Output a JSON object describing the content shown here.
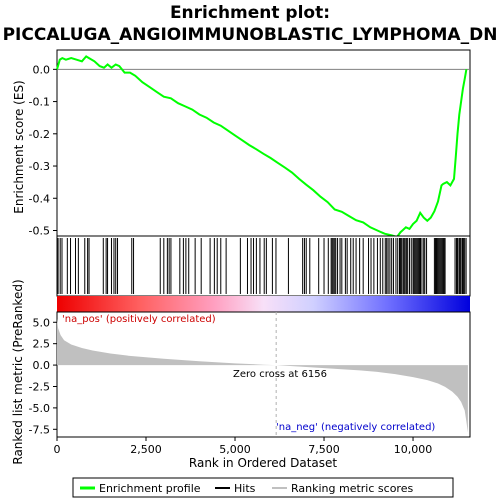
{
  "chart_data": {
    "type": "line",
    "title_line1": "Enrichment plot:",
    "title_line2": "PICCALUGA_ANGIOIMMUNOBLASTIC_LYMPHOMA_DN",
    "es_ylabel": "Enrichment score (ES)",
    "rank_ylabel_line1": "Ranked list metric (PreRanked)",
    "xlabel": "Rank in Ordered Dataset",
    "es_yticks": [
      0.0,
      -0.1,
      -0.2,
      -0.3,
      -0.4,
      -0.5
    ],
    "es_ytick_labels": [
      "0.0",
      "-0.1",
      "-0.2",
      "-0.3",
      "-0.4",
      "-0.5"
    ],
    "es_ylim": [
      -0.545,
      0.06
    ],
    "rank_yticks": [
      5.0,
      2.5,
      0.0,
      -2.5,
      -5.0,
      -7.5
    ],
    "rank_ytick_labels": [
      "5.0",
      "2.5",
      "0.0",
      "-2.5",
      "-5.0",
      "-7.5"
    ],
    "rank_ylim": [
      -8.4,
      6.2
    ],
    "xticks": [
      0,
      2500,
      5000,
      7500,
      10000
    ],
    "xtick_labels": [
      "0",
      "2,500",
      "5,000",
      "7,500",
      "10,000"
    ],
    "xlim": [
      0,
      11600
    ],
    "n_genes": 11540,
    "zero_cross_rank": 6156,
    "zero_cross_label": "Zero cross at 6156",
    "pos_label": "'na_pos' (positively correlated)",
    "neg_label": "'na_neg' (negatively correlated)",
    "es_curve": {
      "x": [
        0,
        80,
        150,
        250,
        400,
        550,
        700,
        820,
        900,
        1050,
        1200,
        1320,
        1420,
        1530,
        1650,
        1750,
        1900,
        2050,
        2200,
        2400,
        2600,
        2800,
        3000,
        3200,
        3400,
        3600,
        3800,
        4000,
        4200,
        4400,
        4600,
        4800,
        5000,
        5200,
        5400,
        5600,
        5800,
        6000,
        6200,
        6400,
        6600,
        6800,
        7000,
        7200,
        7400,
        7600,
        7800,
        8000,
        8200,
        8400,
        8600,
        8800,
        9000,
        9200,
        9400,
        9550,
        9650,
        9700,
        9800,
        9900,
        10000,
        10100,
        10200,
        10300,
        10400,
        10500,
        10600,
        10700,
        10800,
        10850,
        10950,
        11050,
        11100,
        11150,
        11200,
        11250,
        11300,
        11350,
        11400,
        11450,
        11500
      ],
      "es": [
        0.0,
        0.03,
        0.035,
        0.03,
        0.035,
        0.03,
        0.025,
        0.04,
        0.035,
        0.025,
        0.01,
        0.005,
        0.015,
        0.005,
        0.015,
        0.01,
        -0.01,
        -0.01,
        -0.02,
        -0.04,
        -0.055,
        -0.07,
        -0.085,
        -0.09,
        -0.105,
        -0.115,
        -0.125,
        -0.14,
        -0.15,
        -0.165,
        -0.175,
        -0.19,
        -0.205,
        -0.22,
        -0.235,
        -0.248,
        -0.262,
        -0.275,
        -0.29,
        -0.305,
        -0.32,
        -0.34,
        -0.358,
        -0.375,
        -0.395,
        -0.412,
        -0.435,
        -0.442,
        -0.455,
        -0.468,
        -0.475,
        -0.49,
        -0.5,
        -0.51,
        -0.515,
        -0.52,
        -0.505,
        -0.5,
        -0.49,
        -0.495,
        -0.48,
        -0.47,
        -0.445,
        -0.46,
        -0.47,
        -0.46,
        -0.44,
        -0.41,
        -0.36,
        -0.355,
        -0.35,
        -0.36,
        -0.35,
        -0.34,
        -0.27,
        -0.2,
        -0.14,
        -0.1,
        -0.06,
        -0.03,
        0.0
      ]
    },
    "hits": [
      30,
      90,
      140,
      290,
      380,
      520,
      600,
      780,
      860,
      900,
      1300,
      1380,
      1420,
      1530,
      1600,
      1650,
      1700,
      2100,
      2150,
      2900,
      3000,
      3100,
      3150,
      3200,
      3450,
      3550,
      3620,
      3700,
      3880,
      4050,
      4300,
      4420,
      4500,
      4600,
      4750,
      5150,
      5350,
      5450,
      5520,
      5600,
      5700,
      5820,
      5880,
      6050,
      6150,
      6500,
      6900,
      6950,
      7000,
      7100,
      7350,
      7500,
      7620,
      7700,
      7730,
      7760,
      7800,
      7830,
      7880,
      7950,
      8000,
      8100,
      8150,
      8250,
      8320,
      8400,
      8500,
      8600,
      8750,
      8820,
      8900,
      9000,
      9080,
      9150,
      9220,
      9260,
      9300,
      9350,
      9400,
      9450,
      9520,
      9570,
      9620,
      9650,
      9680,
      9720,
      9750,
      9780,
      9820,
      9850,
      9900,
      9950,
      10000,
      10030,
      10060,
      10090,
      10120,
      10150,
      10180,
      10210,
      10250,
      10300,
      10330,
      10380,
      10600,
      10630,
      10660,
      10690,
      10720,
      10750,
      10780,
      10810,
      10840,
      10870,
      10900,
      11180,
      11220,
      11250,
      11290,
      11320,
      11350,
      11390,
      11420,
      11450,
      11490
    ],
    "metric_shape": {
      "ranks": [
        0,
        30,
        100,
        200,
        400,
        700,
        1000,
        1500,
        2000,
        3000,
        4000,
        5000,
        5800,
        6156,
        6500,
        7000,
        7500,
        8000,
        8500,
        9000,
        9500,
        10000,
        10400,
        10700,
        10900,
        11100,
        11250,
        11350,
        11450,
        11500,
        11540
      ],
      "values": [
        5.4,
        4.3,
        3.5,
        2.9,
        2.4,
        2.0,
        1.7,
        1.35,
        1.1,
        0.75,
        0.45,
        0.2,
        0.05,
        0.0,
        -0.1,
        -0.22,
        -0.35,
        -0.48,
        -0.62,
        -0.8,
        -1.05,
        -1.4,
        -1.75,
        -2.15,
        -2.55,
        -3.1,
        -3.7,
        -4.3,
        -5.3,
        -6.6,
        -7.9
      ]
    },
    "legend": [
      "Enrichment profile",
      "Hits",
      "Ranking metric scores"
    ],
    "colors": {
      "es_line": "#00ff00",
      "hit_line": "#000000",
      "metric_fill": "#c0c0c0",
      "pos_label": "#cc0000",
      "neg_label": "#0000cc",
      "zero_line": "#b0b0b0",
      "gradient": [
        "#ee0000",
        "#ff7070",
        "#ffc0e0",
        "#e0e0ff",
        "#9090ff",
        "#0000e0"
      ]
    }
  }
}
